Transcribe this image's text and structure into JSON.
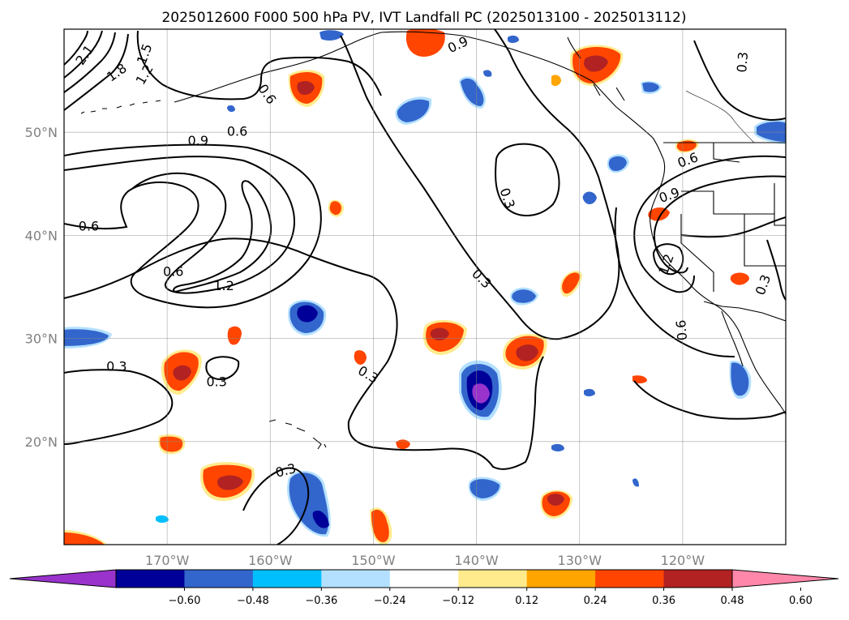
{
  "title": "2025012600 F000 500 hPa PV, IVT Landfall PC (2025013100 - 2025013112)",
  "map": {
    "lon_range": [
      180,
      110
    ],
    "lat_range": [
      10,
      60
    ],
    "lon_ticks": [
      {
        "lon": 170,
        "label": "170°W"
      },
      {
        "lon": 160,
        "label": "160°W"
      },
      {
        "lon": 150,
        "label": "150°W"
      },
      {
        "lon": 140,
        "label": "140°W"
      },
      {
        "lon": 130,
        "label": "130°W"
      },
      {
        "lon": 120,
        "label": "120°W"
      }
    ],
    "lat_ticks": [
      {
        "lat": 20,
        "label": "20°N"
      },
      {
        "lat": 30,
        "label": "30°N"
      },
      {
        "lat": 40,
        "label": "40°N"
      },
      {
        "lat": 50,
        "label": "50°N"
      }
    ],
    "grid": true
  },
  "contour_labels": [
    {
      "text": "2.1",
      "lon": 178.0,
      "lat": 57.5,
      "rot": -55
    },
    {
      "text": "1.8",
      "lon": 174.9,
      "lat": 55.8,
      "rot": -35
    },
    {
      "text": "1.5",
      "lon": 172.2,
      "lat": 57.6,
      "rot": -70
    },
    {
      "text": "1.2",
      "lon": 172.2,
      "lat": 55.6,
      "rot": -60
    },
    {
      "text": "0.6",
      "lon": 160.3,
      "lat": 53.7,
      "rot": 55
    },
    {
      "text": "0.9",
      "lon": 141.8,
      "lat": 58.5,
      "rot": -25
    },
    {
      "text": "0.3",
      "lon": 114.2,
      "lat": 56.8,
      "rot": -85
    },
    {
      "text": "0.6",
      "lon": 163.2,
      "lat": 50.1,
      "rot": 0
    },
    {
      "text": "0.9",
      "lon": 167.0,
      "lat": 49.2,
      "rot": 0
    },
    {
      "text": "0.6",
      "lon": 177.6,
      "lat": 40.9,
      "rot": 0
    },
    {
      "text": "0.6",
      "lon": 169.4,
      "lat": 36.5,
      "rot": 0
    },
    {
      "text": "1.2",
      "lon": 164.5,
      "lat": 35.1,
      "rot": 0
    },
    {
      "text": "0.3",
      "lon": 137.0,
      "lat": 43.6,
      "rot": 70
    },
    {
      "text": "0.3",
      "lon": 139.5,
      "lat": 35.8,
      "rot": 45
    },
    {
      "text": "0.6",
      "lon": 119.5,
      "lat": 47.3,
      "rot": -20
    },
    {
      "text": "0.9",
      "lon": 121.3,
      "lat": 43.9,
      "rot": -20
    },
    {
      "text": "1.2",
      "lon": 121.6,
      "lat": 37.2,
      "rot": -70
    },
    {
      "text": "0.3",
      "lon": 112.2,
      "lat": 35.2,
      "rot": -70
    },
    {
      "text": "0.6",
      "lon": 120.1,
      "lat": 30.8,
      "rot": -95
    },
    {
      "text": "0.3",
      "lon": 174.9,
      "lat": 27.3,
      "rot": 0
    },
    {
      "text": "0.3",
      "lon": 165.2,
      "lat": 25.8,
      "rot": 0
    },
    {
      "text": "0.3",
      "lon": 150.5,
      "lat": 26.5,
      "rot": 30
    },
    {
      "text": "0.3",
      "lon": 158.5,
      "lat": 17.2,
      "rot": -15
    }
  ],
  "colorbar": {
    "colors": [
      "#9933cc",
      "#000099",
      "#3366cc",
      "#00bfff",
      "#b3e0ff",
      "#ffffff",
      "#ffeb8c",
      "#ffa500",
      "#ff4500",
      "#b22222",
      "#ff88aa"
    ],
    "tick_labels": [
      "−0.60",
      "−0.48",
      "−0.36",
      "−0.24",
      "−0.12",
      "0.12",
      "0.24",
      "0.36",
      "0.48",
      "0.60"
    ]
  }
}
